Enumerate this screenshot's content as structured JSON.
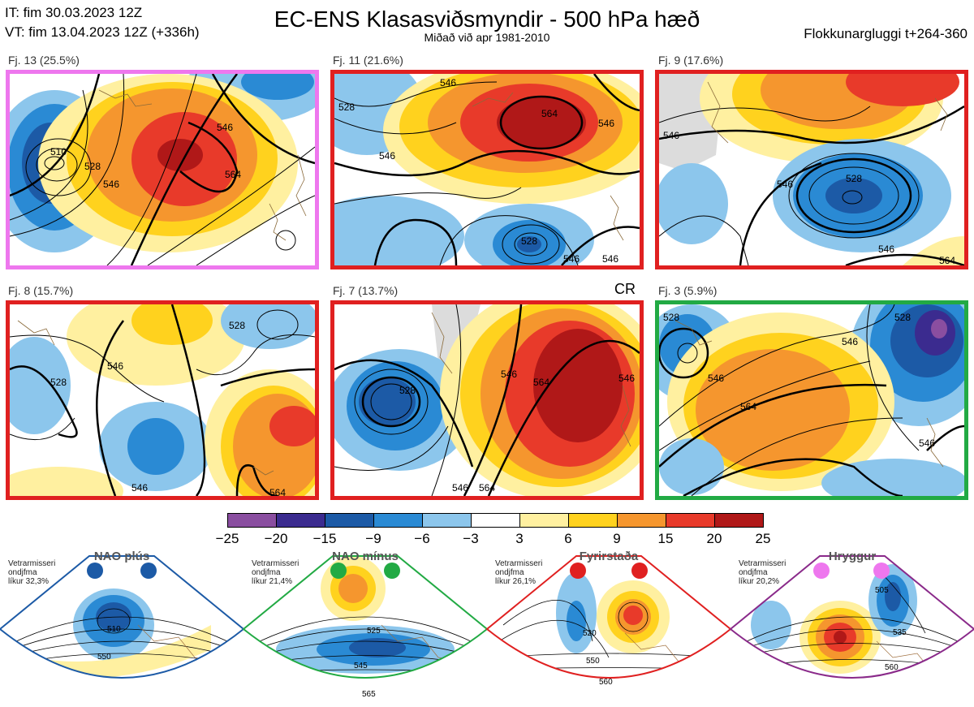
{
  "header": {
    "it_line": "IT: fim 30.03.2023 12Z",
    "vt_line": "VT: fim 13.04.2023 12Z  (+336h)",
    "title": "EC-ENS Klasasviðsmyndir - 500 hPa hæð",
    "subtitle": "Miðað við apr 1981-2010",
    "window": "Flokkunargluggi t+264-360"
  },
  "panels": [
    {
      "label": "Fj. 13 (25.5%)",
      "border": "#ee77ee",
      "contours": [
        "510",
        "528",
        "546",
        "546",
        "564"
      ]
    },
    {
      "label": "Fj. 11 (21.6%)",
      "border": "#e02020",
      "contours": [
        "528",
        "546",
        "546",
        "564",
        "546",
        "528",
        "546",
        "546"
      ]
    },
    {
      "label": "Fj. 9 (17.6%)",
      "border": "#e02020",
      "contours": [
        "546",
        "546",
        "528",
        "546",
        "564"
      ]
    },
    {
      "label": "Fj. 8 (15.7%)",
      "border": "#e02020",
      "contours": [
        "546",
        "528",
        "528",
        "546",
        "564"
      ]
    },
    {
      "label": "Fj. 7 (13.7%)",
      "border": "#e02020",
      "contours": [
        "528",
        "546",
        "564",
        "546",
        "564",
        "546"
      ]
    },
    {
      "label": "Fj. 3 (5.9%)",
      "border": "#22aa44",
      "contours": [
        "528",
        "546",
        "564",
        "546",
        "546",
        "528"
      ]
    }
  ],
  "cr_label": "CR",
  "colorbar": {
    "colors": [
      "#8a4ea0",
      "#3b2b8f",
      "#1c5aa6",
      "#2a8ad4",
      "#8cc6ec",
      "#ffffff",
      "#fff0a0",
      "#ffd21e",
      "#f5962e",
      "#e83a2a",
      "#b01818"
    ],
    "ticks": [
      "−25",
      "−20",
      "−15",
      "−9",
      "−6",
      "−3",
      "3",
      "6",
      "9",
      "15",
      "20",
      "25"
    ]
  },
  "regimes": [
    {
      "name": "NAO plús",
      "color": "#1c5aa6",
      "info": [
        "Vetrarmisseri",
        "ondjfma",
        "líkur 32,3%"
      ],
      "contours": [
        "510",
        "550"
      ]
    },
    {
      "name": "NAO mínus",
      "color": "#22aa44",
      "info": [
        "Vetrarmisseri",
        "ondjfma",
        "líkur 21,4%"
      ],
      "contours": [
        "525",
        "545",
        "565"
      ]
    },
    {
      "name": "Fyrirstaða",
      "color": "#e02020",
      "info": [
        "Vetrarmisseri",
        "ondjfma",
        "líkur 26,1%"
      ],
      "contours": [
        "520",
        "550",
        "560"
      ]
    },
    {
      "name": "Hryggur",
      "color": "#ee77ee",
      "info": [
        "Vetrarmisseri",
        "ondjfma",
        "líkur 20,2%"
      ],
      "contours": [
        "505",
        "535",
        "560"
      ]
    }
  ]
}
